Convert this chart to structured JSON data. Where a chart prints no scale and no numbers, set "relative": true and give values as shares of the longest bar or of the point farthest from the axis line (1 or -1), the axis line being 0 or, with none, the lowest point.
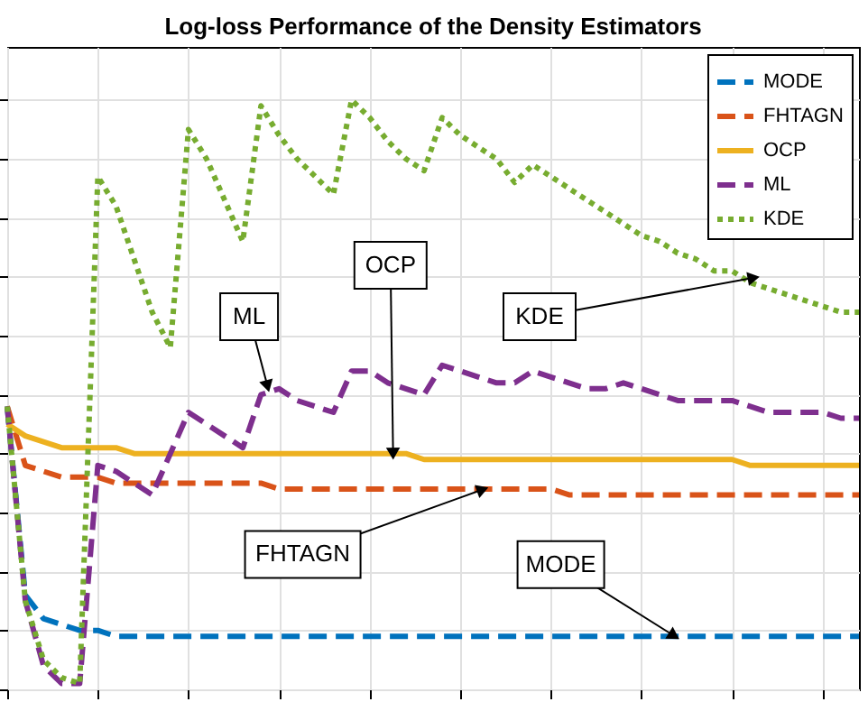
{
  "chart_data": {
    "type": "line",
    "title": "Log-loss Performance of the Density Estimators",
    "relative": true,
    "grid": true,
    "legend": "top right",
    "categories": [
      null,
      null,
      null,
      null,
      null,
      null,
      null,
      null,
      null,
      null,
      null,
      null,
      null,
      null,
      null,
      null,
      null,
      null,
      null,
      null,
      null,
      null,
      null,
      null,
      null,
      null,
      null,
      null,
      null,
      null,
      null,
      null,
      null,
      null,
      null,
      null,
      null,
      null,
      null,
      null,
      null,
      null,
      null,
      null,
      null,
      null,
      null,
      null
    ],
    "series": [
      {
        "name": "MODE",
        "color": "#0072bd",
        "line_style": "dashed",
        "values": [
          0.48,
          0.16,
          0.12,
          0.11,
          0.1,
          0.1,
          0.09,
          0.09,
          0.09,
          0.09,
          0.09,
          0.09,
          0.09,
          0.09,
          0.09,
          0.09,
          0.09,
          0.09,
          0.09,
          0.09,
          0.09,
          0.09,
          0.09,
          0.09,
          0.09,
          0.09,
          0.09,
          0.09,
          0.09,
          0.09,
          0.09,
          0.09,
          0.09,
          0.09,
          0.09,
          0.09,
          0.09,
          0.09,
          0.09,
          0.09,
          0.09,
          0.09,
          0.09,
          0.09,
          0.09,
          0.09,
          0.09,
          0.09
        ]
      },
      {
        "name": "FHTAGN",
        "color": "#d95319",
        "line_style": "dashed",
        "values": [
          0.48,
          0.38,
          0.37,
          0.36,
          0.36,
          0.36,
          0.35,
          0.35,
          0.35,
          0.35,
          0.35,
          0.35,
          0.35,
          0.35,
          0.35,
          0.34,
          0.34,
          0.34,
          0.34,
          0.34,
          0.34,
          0.34,
          0.34,
          0.34,
          0.34,
          0.34,
          0.34,
          0.34,
          0.34,
          0.34,
          0.34,
          0.33,
          0.33,
          0.33,
          0.33,
          0.33,
          0.33,
          0.33,
          0.33,
          0.33,
          0.33,
          0.33,
          0.33,
          0.33,
          0.33,
          0.33,
          0.33,
          0.33
        ]
      },
      {
        "name": "OCP",
        "color": "#edb120",
        "line_style": "solid",
        "values": [
          0.45,
          0.43,
          0.42,
          0.41,
          0.41,
          0.41,
          0.41,
          0.4,
          0.4,
          0.4,
          0.4,
          0.4,
          0.4,
          0.4,
          0.4,
          0.4,
          0.4,
          0.4,
          0.4,
          0.4,
          0.4,
          0.4,
          0.4,
          0.39,
          0.39,
          0.39,
          0.39,
          0.39,
          0.39,
          0.39,
          0.39,
          0.39,
          0.39,
          0.39,
          0.39,
          0.39,
          0.39,
          0.39,
          0.39,
          0.39,
          0.39,
          0.38,
          0.38,
          0.38,
          0.38,
          0.38,
          0.38,
          0.38
        ]
      },
      {
        "name": "ML",
        "color": "#7e2f8e",
        "line_style": "dashed",
        "values": [
          0.48,
          0.15,
          0.04,
          0.01,
          0.01,
          0.38,
          0.37,
          0.35,
          0.33,
          0.4,
          0.47,
          0.45,
          0.43,
          0.41,
          0.5,
          0.51,
          0.49,
          0.48,
          0.47,
          0.54,
          0.54,
          0.52,
          0.51,
          0.5,
          0.55,
          0.54,
          0.53,
          0.52,
          0.52,
          0.54,
          0.53,
          0.52,
          0.51,
          0.51,
          0.52,
          0.51,
          0.5,
          0.49,
          0.49,
          0.49,
          0.49,
          0.48,
          0.47,
          0.47,
          0.47,
          0.47,
          0.46,
          0.46
        ]
      },
      {
        "name": "KDE",
        "color": "#77ac30",
        "line_style": "dotted",
        "values": [
          0.48,
          0.15,
          0.05,
          0.02,
          0.01,
          0.87,
          0.82,
          0.73,
          0.64,
          0.58,
          0.95,
          0.9,
          0.83,
          0.76,
          0.99,
          0.94,
          0.9,
          0.87,
          0.84,
          1.0,
          0.97,
          0.93,
          0.9,
          0.88,
          0.97,
          0.94,
          0.92,
          0.9,
          0.86,
          0.89,
          0.87,
          0.85,
          0.83,
          0.81,
          0.79,
          0.77,
          0.76,
          0.74,
          0.73,
          0.71,
          0.71,
          0.69,
          0.68,
          0.67,
          0.66,
          0.65,
          0.64,
          0.64
        ]
      }
    ],
    "annotations": [
      "OCP",
      "ML",
      "KDE",
      "FHTAGN",
      "MODE"
    ]
  }
}
